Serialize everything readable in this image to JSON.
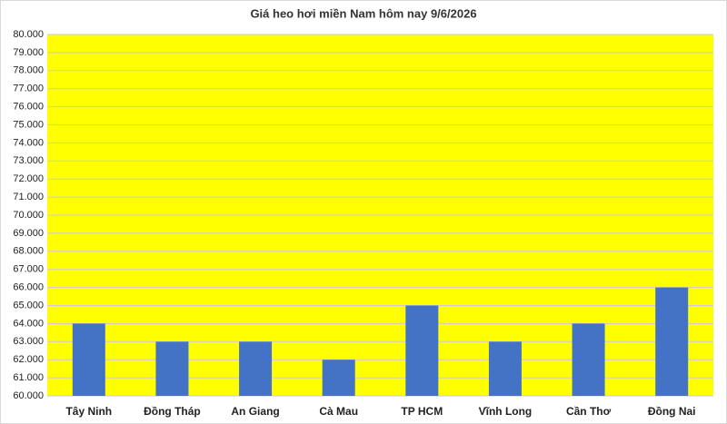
{
  "chart_data": {
    "type": "bar",
    "title": "Giá heo hơi miền Nam hôm nay 9/6/2026",
    "categories": [
      "Tây Ninh",
      "Đồng Tháp",
      "An Giang",
      "Cà Mau",
      "TP HCM",
      "Vĩnh Long",
      "Cần Thơ",
      "Đồng Nai"
    ],
    "values": [
      64000,
      63000,
      63000,
      62000,
      65000,
      63000,
      64000,
      66000
    ],
    "color": "#4472c4",
    "ylim": [
      60000,
      80000
    ],
    "yticks": [
      {
        "value": 60000,
        "label": "60.000"
      },
      {
        "value": 61000,
        "label": "61.000"
      },
      {
        "value": 62000,
        "label": "62.000"
      },
      {
        "value": 63000,
        "label": "63.000"
      },
      {
        "value": 64000,
        "label": "64.000"
      },
      {
        "value": 65000,
        "label": "65.000"
      },
      {
        "value": 66000,
        "label": "66.000"
      },
      {
        "value": 67000,
        "label": "67.000"
      },
      {
        "value": 68000,
        "label": "68.000"
      },
      {
        "value": 69000,
        "label": "69.000"
      },
      {
        "value": 70000,
        "label": "70.000"
      },
      {
        "value": 71000,
        "label": "71.000"
      },
      {
        "value": 72000,
        "label": "72.000"
      },
      {
        "value": 73000,
        "label": "73.000"
      },
      {
        "value": 74000,
        "label": "74.000"
      },
      {
        "value": 75000,
        "label": "75.000"
      },
      {
        "value": 76000,
        "label": "76.000"
      },
      {
        "value": 77000,
        "label": "77.000"
      },
      {
        "value": 78000,
        "label": "78.000"
      },
      {
        "value": 79000,
        "label": "79.000"
      },
      {
        "value": 80000,
        "label": "80.000"
      }
    ],
    "grid": true
  }
}
